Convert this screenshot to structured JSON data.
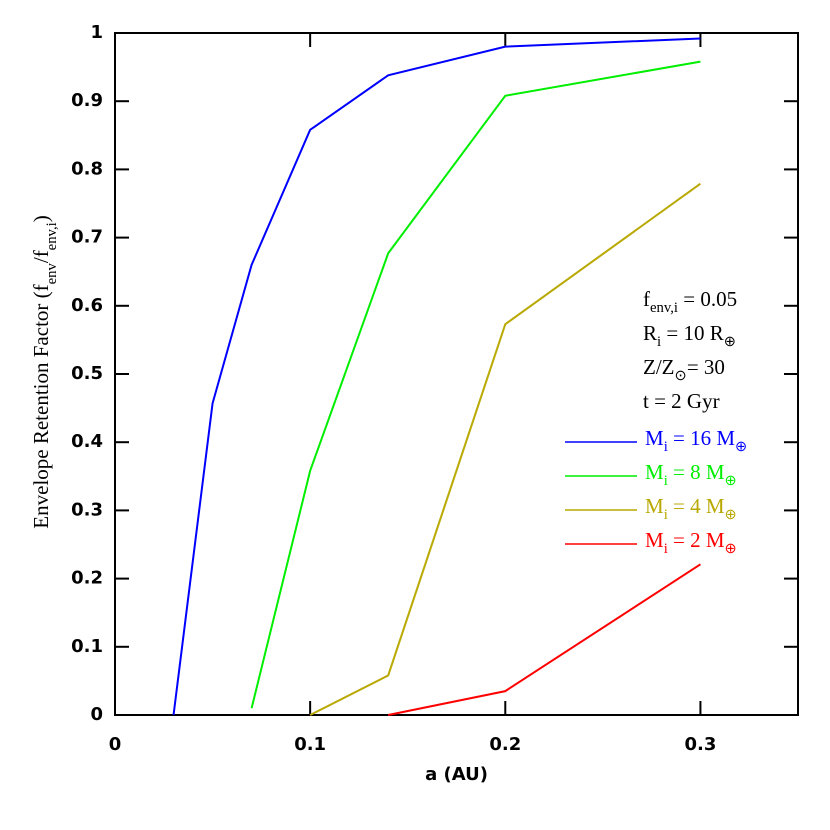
{
  "chart_data": {
    "type": "line",
    "x_label": "a (AU)",
    "y_label": [
      "Envelope Retention Factor (f",
      "env",
      "/f",
      "env,i",
      ")"
    ],
    "annotations": [
      [
        "f",
        "env,i",
        " = 0.05"
      ],
      [
        "R",
        "i",
        " = 10 R",
        "⊕"
      ],
      [
        "Z/Z",
        "⊙",
        "= 30"
      ],
      [
        "t = 2 Gyr"
      ]
    ],
    "xlim": [
      0,
      0.35
    ],
    "ylim": [
      0,
      1
    ],
    "xticks": [
      0,
      0.1,
      0.2,
      0.3
    ],
    "yticks": [
      0,
      0.1,
      0.2,
      0.3,
      0.4,
      0.5,
      0.6,
      0.7,
      0.8,
      0.9,
      1
    ],
    "series": [
      {
        "name": [
          "M",
          "i",
          " = 16 M",
          "⊕"
        ],
        "color": "#0000ff",
        "x": [
          0.03,
          0.05,
          0.07,
          0.1,
          0.14,
          0.2,
          0.3
        ],
        "values": [
          0,
          0.457,
          0.66,
          0.858,
          0.938,
          0.98,
          0.992
        ]
      },
      {
        "name": [
          "M",
          "i",
          " = 8 M",
          "⊕"
        ],
        "color": "#00ee00",
        "x": [
          0.07,
          0.1,
          0.14,
          0.2,
          0.3
        ],
        "values": [
          0.01,
          0.358,
          0.677,
          0.908,
          0.958
        ]
      },
      {
        "name": [
          "M",
          "i",
          " = 4 M",
          "⊕"
        ],
        "color": "#b8a800",
        "x": [
          0.1,
          0.14,
          0.2,
          0.3
        ],
        "values": [
          0,
          0.058,
          0.573,
          0.779
        ]
      },
      {
        "name": [
          "M",
          "i",
          " = 2 M",
          "⊕"
        ],
        "color": "#ff0000",
        "x": [
          0.14,
          0.2,
          0.3
        ],
        "values": [
          0,
          0.035,
          0.221
        ]
      }
    ]
  }
}
